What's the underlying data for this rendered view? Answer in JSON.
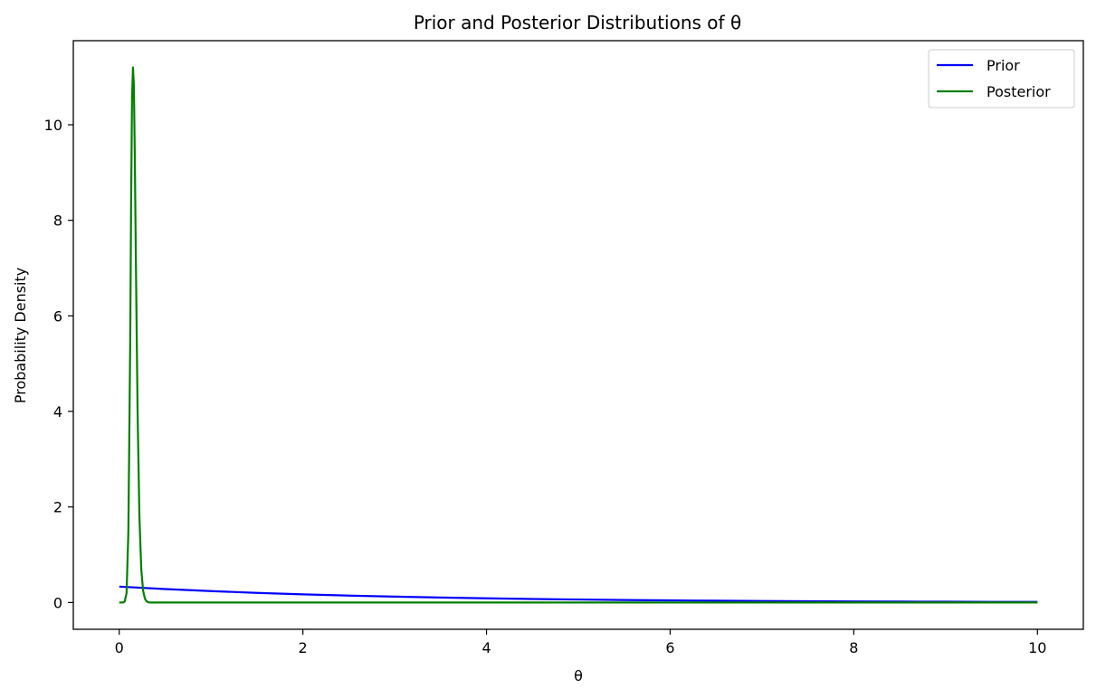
{
  "chart_data": {
    "type": "line",
    "title": "Prior and Posterior Distributions of θ",
    "xlabel": "θ",
    "ylabel": "Probability Density",
    "xlim": [
      -0.5,
      10.5
    ],
    "ylim": [
      -0.56,
      11.76
    ],
    "xticks": [
      0,
      2,
      4,
      6,
      8,
      10
    ],
    "yticks": [
      0,
      2,
      4,
      6,
      8,
      10
    ],
    "grid": false,
    "legend_position": "top-right",
    "series": [
      {
        "name": "Prior",
        "color": "#0000ff",
        "x": [
          0,
          0.5,
          1,
          1.5,
          2,
          2.5,
          3,
          3.5,
          4,
          4.5,
          5,
          5.5,
          6,
          6.5,
          7,
          7.5,
          8,
          8.5,
          9,
          9.5,
          10
        ],
        "y": [
          0.333,
          0.282,
          0.239,
          0.202,
          0.171,
          0.145,
          0.123,
          0.104,
          0.088,
          0.074,
          0.063,
          0.053,
          0.045,
          0.038,
          0.032,
          0.027,
          0.023,
          0.02,
          0.017,
          0.014,
          0.012
        ]
      },
      {
        "name": "Posterior",
        "color": "#008000",
        "x": [
          0,
          0.04,
          0.06,
          0.08,
          0.1,
          0.12,
          0.13,
          0.14,
          0.15,
          0.16,
          0.17,
          0.18,
          0.2,
          0.22,
          0.24,
          0.26,
          0.28,
          0.3,
          0.33,
          0.4,
          1,
          2,
          4,
          6,
          8,
          10
        ],
        "y": [
          0,
          0,
          0.02,
          0.2,
          1.5,
          5.5,
          8.5,
          10.6,
          11.2,
          10.8,
          9.3,
          7.4,
          4.0,
          1.8,
          0.7,
          0.25,
          0.08,
          0.02,
          0,
          0,
          0,
          0,
          0,
          0,
          0,
          0
        ]
      }
    ]
  }
}
